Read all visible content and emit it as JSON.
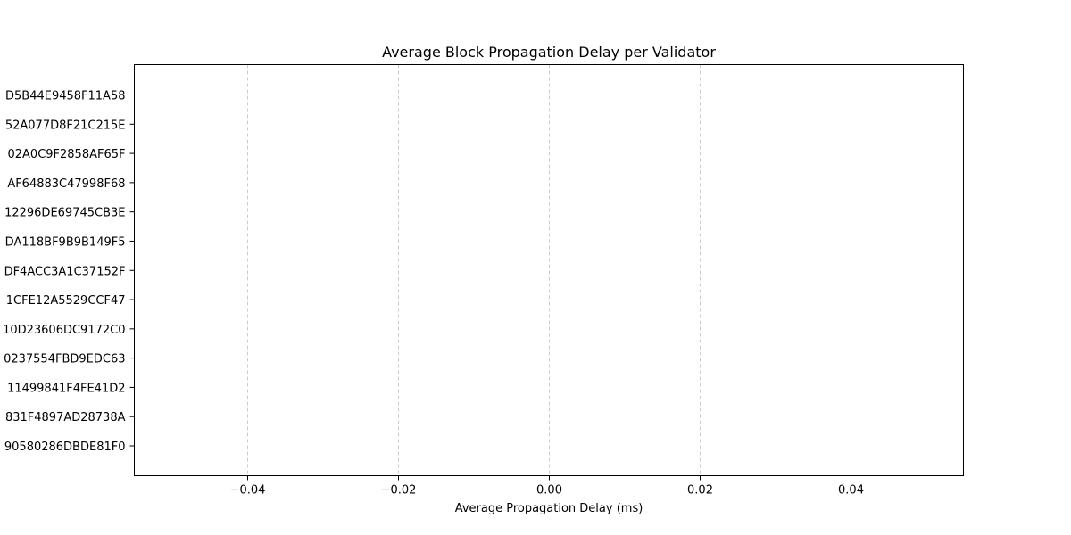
{
  "chart_data": {
    "type": "bar",
    "orientation": "horizontal",
    "title": "Average Block Propagation Delay per Validator",
    "xlabel": "Average Propagation Delay (ms)",
    "ylabel": "",
    "categories": [
      "D5B44E9458F11A58",
      "52A077D8F21C215E",
      "02A0C9F2858AF65F",
      "AF64883C47998F68",
      "12296DE69745CB3E",
      "DA118BF9B9B149F5",
      "DF4ACC3A1C37152F",
      "1CFE12A5529CCF47",
      "10D23606DC9172C0",
      "0237554FBD9EDC63",
      "11499841F4FE41D2",
      "831F4897AD28738A",
      "90580286DBDE81F0"
    ],
    "values": [
      0,
      0,
      0,
      0,
      0,
      0,
      0,
      0,
      0,
      0,
      0,
      0,
      0
    ],
    "xlim": [
      -0.055,
      0.055
    ],
    "xticks": [
      -0.04,
      -0.02,
      0.0,
      0.02,
      0.04
    ],
    "xtick_labels": [
      "−0.04",
      "−0.02",
      "0.00",
      "0.02",
      "0.04"
    ],
    "grid": "x-dashed",
    "colors": {
      "grid": "#cccccc",
      "axes": "#000000",
      "bar": "#1f77b4"
    }
  }
}
